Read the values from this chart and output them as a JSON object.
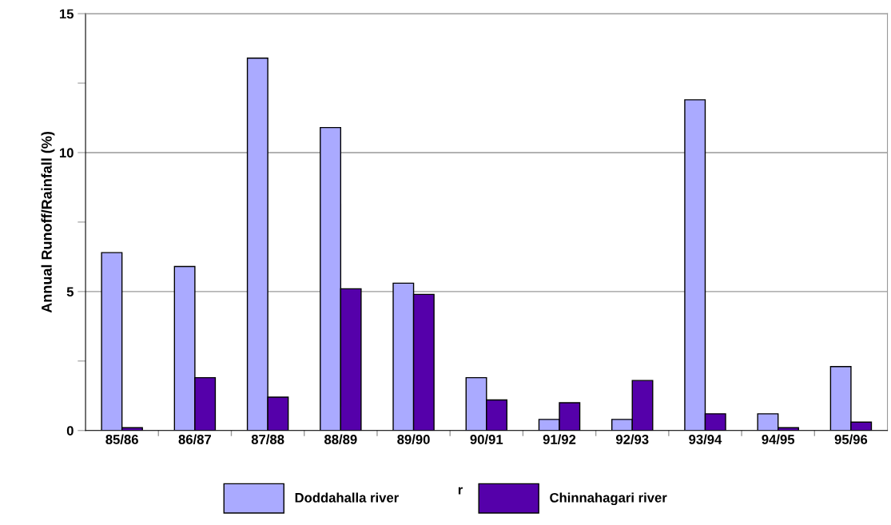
{
  "chart_data": {
    "type": "bar",
    "ylabel": "Annual Runoff/Rainfall (%)",
    "categories": [
      "85/86",
      "86/87",
      "87/88",
      "88/89",
      "89/90",
      "90/91",
      "91/92",
      "92/93",
      "93/94",
      "94/95",
      "95/96"
    ],
    "series": [
      {
        "name": "Doddahalla river",
        "color": "#aaaaff",
        "values": [
          6.4,
          5.9,
          13.4,
          10.9,
          5.3,
          1.9,
          0.4,
          0.4,
          11.9,
          0.6,
          2.3
        ]
      },
      {
        "name": "Chinnahagari river",
        "color": "#5500aa",
        "values": [
          0.1,
          1.9,
          1.2,
          5.1,
          4.9,
          1.1,
          1.0,
          1.8,
          0.6,
          0.1,
          0.3
        ]
      }
    ],
    "ylim": [
      0,
      15
    ],
    "yticks": [
      0,
      {
        "value": 2.5,
        "label": null
      },
      5,
      {
        "value": 7.5,
        "label": null
      },
      10,
      {
        "value": 12.5,
        "label": null
      },
      15
    ],
    "grid": "y",
    "legend": "bottom",
    "annotations": [
      "r"
    ]
  }
}
